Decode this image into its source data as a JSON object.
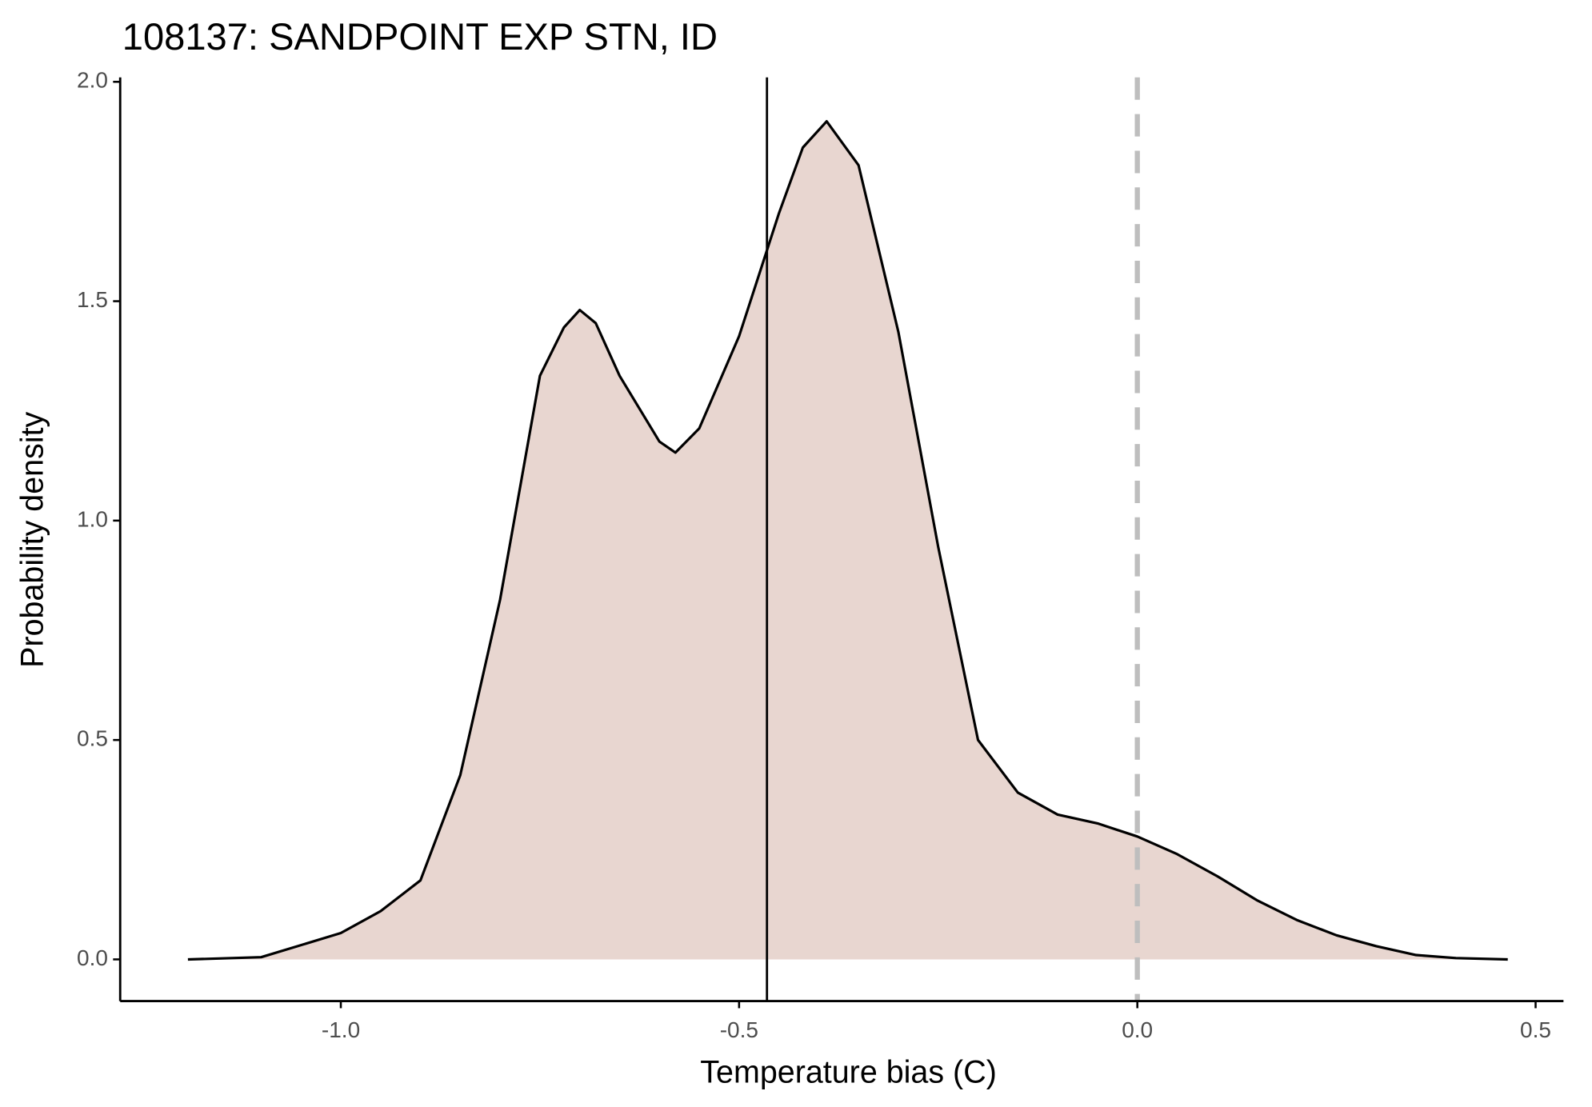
{
  "chart_data": {
    "type": "density",
    "title": "108137: SANDPOINT EXP STN, ID",
    "x_label": "Temperature bias (C)",
    "y_label": "Probability density",
    "x": [
      -1.192,
      -1.1,
      -1.0,
      -0.95,
      -0.9,
      -0.85,
      -0.8,
      -0.75,
      -0.72,
      -0.7,
      -0.68,
      -0.65,
      -0.6,
      -0.58,
      -0.55,
      -0.5,
      -0.45,
      -0.42,
      -0.39,
      -0.35,
      -0.3,
      -0.25,
      -0.2,
      -0.15,
      -0.1,
      -0.05,
      0.0,
      0.05,
      0.1,
      0.15,
      0.2,
      0.25,
      0.3,
      0.35,
      0.4,
      0.465
    ],
    "values": [
      0,
      0.005,
      0.06,
      0.11,
      0.18,
      0.42,
      0.82,
      1.33,
      1.44,
      1.48,
      1.45,
      1.33,
      1.18,
      1.155,
      1.21,
      1.42,
      1.7,
      1.85,
      1.91,
      1.81,
      1.43,
      0.94,
      0.5,
      0.38,
      0.33,
      0.31,
      0.28,
      0.24,
      0.19,
      0.135,
      0.09,
      0.055,
      0.03,
      0.01,
      0.003,
      0
    ],
    "fill": "#e8d6d0",
    "color": "#000000",
    "vlines": [
      {
        "value": -0.465,
        "color": "#000000",
        "dashed": false
      },
      {
        "value": 0,
        "color": "#bebebe",
        "dashed": true
      }
    ],
    "xlim": [
      -1.277,
      0.535
    ],
    "ylim": [
      -0.095,
      2.01
    ],
    "xticks": [
      {
        "value": -1,
        "label": "-1.0"
      },
      {
        "value": -0.5,
        "label": "-0.5"
      },
      {
        "value": 0,
        "label": "0.0"
      },
      {
        "value": 0.5,
        "label": "0.5"
      }
    ],
    "yticks": [
      {
        "value": 0,
        "label": "0.0"
      },
      {
        "value": 0.5,
        "label": "0.5"
      },
      {
        "value": 1,
        "label": "1.0"
      },
      {
        "value": 1.5,
        "label": "1.5"
      },
      {
        "value": 2,
        "label": "2.0"
      }
    ],
    "grid": false
  }
}
